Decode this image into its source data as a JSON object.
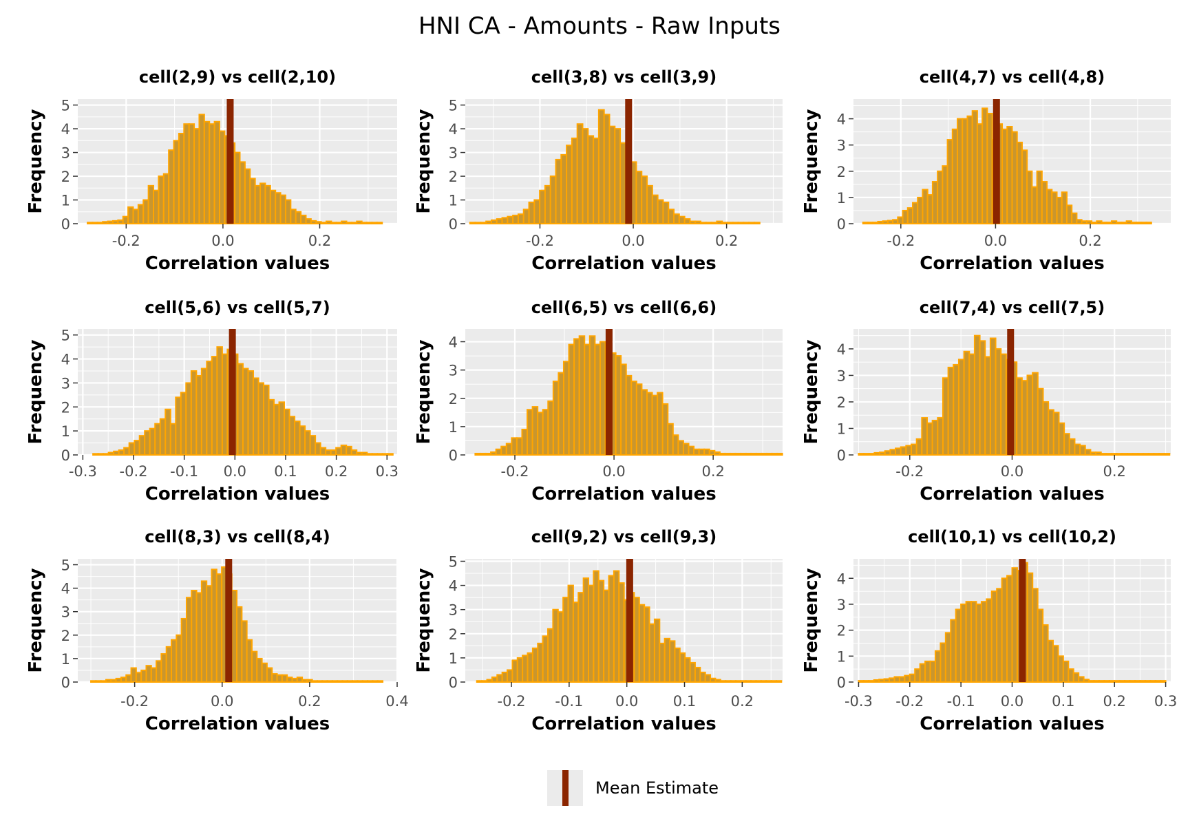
{
  "title": "HNI CA - Amounts - Raw Inputs",
  "legend": {
    "label": "Mean Estimate",
    "color": "#8b2500"
  },
  "colors": {
    "bar_fill": "#c9962e",
    "bar_outline": "#ffa500",
    "mean_line": "#8b2500",
    "panel_bg": "#ebebeb",
    "grid": "#ffffff"
  },
  "chart_data": [
    {
      "type": "bar",
      "title": "cell(2,9) vs cell(2,10)",
      "xlabel": "Correlation values",
      "ylabel": "Frequency",
      "xlim": [
        -0.3,
        0.36
      ],
      "ylim": [
        0,
        5.25
      ],
      "xticks": [
        -0.2,
        0.0,
        0.2
      ],
      "xtick_labels": [
        "-0.2",
        "0.0",
        "0.2"
      ],
      "yticks": [
        0,
        1,
        2,
        3,
        4,
        5
      ],
      "x_start": -0.28,
      "bin_width": 0.0105,
      "values": [
        0.05,
        0.05,
        0.05,
        0.08,
        0.1,
        0.12,
        0.15,
        0.3,
        0.7,
        0.6,
        0.8,
        1.0,
        1.6,
        1.4,
        2.0,
        2.1,
        3.1,
        3.5,
        3.8,
        4.2,
        4.2,
        4.0,
        4.6,
        4.3,
        4.2,
        4.3,
        3.9,
        3.7,
        3.4,
        3.0,
        2.6,
        2.3,
        1.9,
        1.6,
        1.7,
        1.6,
        1.4,
        1.3,
        1.2,
        1.0,
        0.6,
        0.5,
        0.35,
        0.2,
        0.12,
        0.08,
        0.05,
        0.1,
        0.05,
        0.05,
        0.1,
        0.05,
        0.05,
        0.1,
        0.05,
        0.05,
        0.05,
        0.05
      ],
      "mean": 0.015
    },
    {
      "type": "bar",
      "title": "cell(3,8) vs cell(3,9)",
      "xlabel": "Correlation values",
      "ylabel": "Frequency",
      "xlim": [
        -0.36,
        0.32
      ],
      "ylim": [
        0,
        5.25
      ],
      "xticks": [
        -0.2,
        0.0,
        0.2
      ],
      "xtick_labels": [
        "-0.2",
        "0.0",
        "0.2"
      ],
      "yticks": [
        0,
        1,
        2,
        3,
        4,
        5
      ],
      "x_start": -0.35,
      "bin_width": 0.0115,
      "values": [
        0.05,
        0.05,
        0.05,
        0.1,
        0.15,
        0.2,
        0.25,
        0.3,
        0.35,
        0.4,
        0.6,
        0.9,
        1.0,
        1.4,
        1.6,
        2.0,
        2.7,
        2.9,
        3.3,
        3.6,
        4.2,
        4.0,
        3.7,
        3.6,
        4.8,
        4.6,
        4.1,
        4.0,
        3.4,
        3.0,
        2.6,
        2.2,
        2.0,
        1.6,
        1.2,
        1.0,
        0.9,
        0.6,
        0.4,
        0.3,
        0.2,
        0.1,
        0.1,
        0.05,
        0.05,
        0.05,
        0.1,
        0.05,
        0.05,
        0.05,
        0.05,
        0.05,
        0.05,
        0.05
      ],
      "mean": -0.01
    },
    {
      "type": "bar",
      "title": "cell(4,7) vs cell(4,8)",
      "xlabel": "Correlation values",
      "ylabel": "Frequency",
      "xlim": [
        -0.3,
        0.37
      ],
      "ylim": [
        0,
        4.75
      ],
      "xticks": [
        -0.2,
        0.0,
        0.2
      ],
      "xtick_labels": [
        "-0.2",
        "0.0",
        "0.2"
      ],
      "yticks": [
        0,
        1,
        2,
        3,
        4
      ],
      "x_start": -0.28,
      "bin_width": 0.0105,
      "values": [
        0.05,
        0.05,
        0.05,
        0.08,
        0.1,
        0.12,
        0.15,
        0.25,
        0.5,
        0.6,
        0.8,
        1.0,
        1.3,
        1.1,
        1.6,
        2.0,
        2.2,
        3.2,
        3.6,
        4.0,
        4.0,
        4.1,
        4.3,
        3.8,
        4.4,
        4.2,
        3.2,
        3.8,
        3.6,
        3.7,
        3.5,
        3.1,
        2.8,
        2.0,
        1.4,
        2.0,
        1.6,
        1.3,
        1.2,
        1.0,
        1.2,
        0.7,
        0.4,
        0.15,
        0.1,
        0.1,
        0.05,
        0.1,
        0.05,
        0.05,
        0.1,
        0.05,
        0.05,
        0.1,
        0.05,
        0.05,
        0.05,
        0.05
      ],
      "mean": 0.002
    },
    {
      "type": "bar",
      "title": "cell(5,6) vs cell(5,7)",
      "xlabel": "Correlation values",
      "ylabel": "Frequency",
      "xlim": [
        -0.31,
        0.32
      ],
      "ylim": [
        0,
        5.25
      ],
      "xticks": [
        -0.3,
        -0.2,
        -0.1,
        0.0,
        0.1,
        0.2,
        0.3
      ],
      "xtick_labels": [
        "-0.3",
        "-0.2",
        "-0.1",
        "0.0",
        "0.1",
        "0.2",
        "0.3"
      ],
      "yticks": [
        0,
        1,
        2,
        3,
        4,
        5
      ],
      "x_start": -0.28,
      "bin_width": 0.0102,
      "values": [
        0.05,
        0.05,
        0.05,
        0.1,
        0.15,
        0.2,
        0.3,
        0.5,
        0.6,
        0.8,
        1.0,
        1.1,
        1.3,
        1.5,
        1.9,
        1.3,
        2.4,
        2.6,
        3.0,
        3.5,
        3.3,
        3.6,
        3.9,
        4.1,
        4.5,
        4.2,
        4.4,
        4.2,
        3.8,
        3.6,
        3.5,
        3.2,
        3.0,
        2.9,
        2.3,
        2.1,
        2.2,
        1.9,
        1.6,
        1.4,
        1.2,
        1.0,
        0.8,
        0.5,
        0.3,
        0.2,
        0.2,
        0.3,
        0.4,
        0.35,
        0.2,
        0.1,
        0.1,
        0.05,
        0.05,
        0.05,
        0.05,
        0.05,
        0.05,
        0.05,
        0.05
      ],
      "mean": -0.005
    },
    {
      "type": "bar",
      "title": "cell(6,5) vs cell(6,6)",
      "xlabel": "Correlation values",
      "ylabel": "Frequency",
      "xlim": [
        -0.3,
        0.34
      ],
      "ylim": [
        0,
        4.45
      ],
      "xticks": [
        -0.2,
        0.0,
        0.2
      ],
      "xtick_labels": [
        "-0.2",
        "0.0",
        "0.2"
      ],
      "yticks": [
        0,
        1,
        2,
        3,
        4
      ],
      "x_start": -0.28,
      "bin_width": 0.0105,
      "values": [
        0.05,
        0.05,
        0.05,
        0.1,
        0.2,
        0.3,
        0.4,
        0.6,
        0.6,
        0.9,
        1.6,
        1.7,
        1.5,
        1.6,
        1.9,
        2.6,
        2.9,
        3.3,
        3.9,
        4.1,
        4.2,
        3.9,
        4.2,
        3.9,
        4.0,
        3.3,
        3.6,
        3.5,
        3.2,
        2.8,
        2.6,
        2.5,
        2.3,
        2.2,
        2.1,
        2.2,
        1.8,
        1.1,
        0.7,
        0.5,
        0.4,
        0.3,
        0.2,
        0.2,
        0.2,
        0.15,
        0.1,
        0.05,
        0.05,
        0.05,
        0.05,
        0.05,
        0.05,
        0.05,
        0.05,
        0.05,
        0.05,
        0.05,
        0.05,
        0.05
      ],
      "mean": -0.01
    },
    {
      "type": "bar",
      "title": "cell(7,4) vs cell(7,5)",
      "xlabel": "Correlation values",
      "ylabel": "Frequency",
      "xlim": [
        -0.31,
        0.31
      ],
      "ylim": [
        0,
        4.75
      ],
      "xticks": [
        -0.2,
        0.0,
        0.2
      ],
      "xtick_labels": [
        "-0.2",
        "0.0",
        "0.2"
      ],
      "yticks": [
        0,
        1,
        2,
        3,
        4
      ],
      "x_start": -0.3,
      "bin_width": 0.0103,
      "values": [
        0.05,
        0.05,
        0.05,
        0.08,
        0.1,
        0.15,
        0.2,
        0.25,
        0.3,
        0.35,
        0.4,
        0.6,
        1.4,
        1.2,
        1.3,
        1.4,
        2.9,
        3.3,
        3.4,
        3.6,
        3.9,
        3.8,
        4.5,
        4.3,
        3.7,
        4.4,
        4.0,
        3.8,
        3.6,
        3.5,
        2.9,
        2.8,
        3.0,
        3.1,
        2.5,
        2.0,
        1.7,
        1.6,
        1.2,
        0.8,
        0.6,
        0.4,
        0.35,
        0.2,
        0.1,
        0.1,
        0.05,
        0.05,
        0.05,
        0.05,
        0.05,
        0.05,
        0.05,
        0.05,
        0.05,
        0.05,
        0.05,
        0.05,
        0.05
      ],
      "mean": -0.003
    },
    {
      "type": "bar",
      "title": "cell(8,3) vs cell(8,4)",
      "xlabel": "Correlation values",
      "ylabel": "Frequency",
      "xlim": [
        -0.33,
        0.4
      ],
      "ylim": [
        0,
        5.25
      ],
      "xticks": [
        -0.2,
        0.0,
        0.2,
        0.4
      ],
      "xtick_labels": [
        "-0.2",
        "0.0",
        "0.2",
        "0.4"
      ],
      "yticks": [
        0,
        1,
        2,
        3,
        4,
        5
      ],
      "x_start": -0.3,
      "bin_width": 0.0115,
      "values": [
        0.05,
        0.05,
        0.05,
        0.1,
        0.1,
        0.15,
        0.2,
        0.3,
        0.6,
        0.4,
        0.5,
        0.7,
        0.6,
        0.9,
        1.2,
        1.5,
        1.8,
        2.0,
        2.7,
        3.6,
        3.9,
        3.8,
        4.3,
        4.1,
        4.8,
        4.6,
        4.9,
        4.6,
        3.9,
        3.2,
        2.6,
        1.8,
        1.3,
        1.0,
        0.8,
        0.6,
        0.35,
        0.3,
        0.3,
        0.2,
        0.15,
        0.2,
        0.1,
        0.1,
        0.05,
        0.05,
        0.05,
        0.05,
        0.05,
        0.05,
        0.05,
        0.05,
        0.05,
        0.05,
        0.05,
        0.05,
        0.05,
        0.05
      ],
      "mean": 0.015
    },
    {
      "type": "bar",
      "title": "cell(9,2) vs cell(9,3)",
      "xlabel": "Correlation values",
      "ylabel": "Frequency",
      "xlim": [
        -0.28,
        0.27
      ],
      "ylim": [
        0,
        5.1
      ],
      "xticks": [
        -0.2,
        -0.1,
        0.0,
        0.1,
        0.2
      ],
      "xtick_labels": [
        "-0.2",
        "-0.1",
        "0.0",
        "0.1",
        "0.2"
      ],
      "yticks": [
        0,
        1,
        2,
        3,
        4,
        5
      ],
      "x_start": -0.26,
      "bin_width": 0.0088,
      "values": [
        0.05,
        0.05,
        0.1,
        0.2,
        0.3,
        0.4,
        0.5,
        0.9,
        1.0,
        1.1,
        1.2,
        1.4,
        1.6,
        1.9,
        2.2,
        3.0,
        2.9,
        3.5,
        4.0,
        3.3,
        3.7,
        4.3,
        4.0,
        4.6,
        4.2,
        3.8,
        4.4,
        4.6,
        4.1,
        3.4,
        3.7,
        3.5,
        3.2,
        3.1,
        2.4,
        2.6,
        1.6,
        1.8,
        1.7,
        1.4,
        1.2,
        1.0,
        0.8,
        0.6,
        0.4,
        0.3,
        0.15,
        0.1,
        0.05,
        0.05,
        0.05,
        0.05,
        0.05,
        0.05,
        0.05,
        0.05,
        0.05,
        0.05,
        0.05,
        0.05,
        0.05,
        0.05
      ],
      "mean": 0.005
    },
    {
      "type": "bar",
      "title": "cell(10,1) vs cell(10,2)",
      "xlabel": "Correlation values",
      "ylabel": "Frequency",
      "xlim": [
        -0.31,
        0.31
      ],
      "ylim": [
        0,
        4.75
      ],
      "xticks": [
        -0.3,
        -0.2,
        -0.1,
        0.0,
        0.1,
        0.2,
        0.3
      ],
      "xtick_labels": [
        "-0.3",
        "-0.2",
        "-0.1",
        "0.0",
        "0.1",
        "0.2",
        "0.3"
      ],
      "yticks": [
        0,
        1,
        2,
        3,
        4
      ],
      "x_start": -0.3,
      "bin_width": 0.01,
      "values": [
        0.05,
        0.05,
        0.05,
        0.08,
        0.1,
        0.12,
        0.15,
        0.2,
        0.2,
        0.25,
        0.3,
        0.5,
        0.7,
        0.8,
        0.8,
        1.2,
        1.5,
        1.9,
        2.4,
        2.8,
        3.0,
        3.1,
        3.1,
        3.0,
        3.1,
        3.2,
        3.5,
        3.6,
        4.0,
        4.1,
        4.4,
        4.3,
        4.6,
        4.2,
        3.6,
        2.8,
        2.2,
        1.6,
        1.4,
        1.0,
        0.8,
        0.5,
        0.35,
        0.2,
        0.1,
        0.05,
        0.05,
        0.05,
        0.05,
        0.05,
        0.05,
        0.05,
        0.05,
        0.05,
        0.05,
        0.05,
        0.05,
        0.05,
        0.05,
        0.05
      ],
      "mean": 0.02
    }
  ]
}
